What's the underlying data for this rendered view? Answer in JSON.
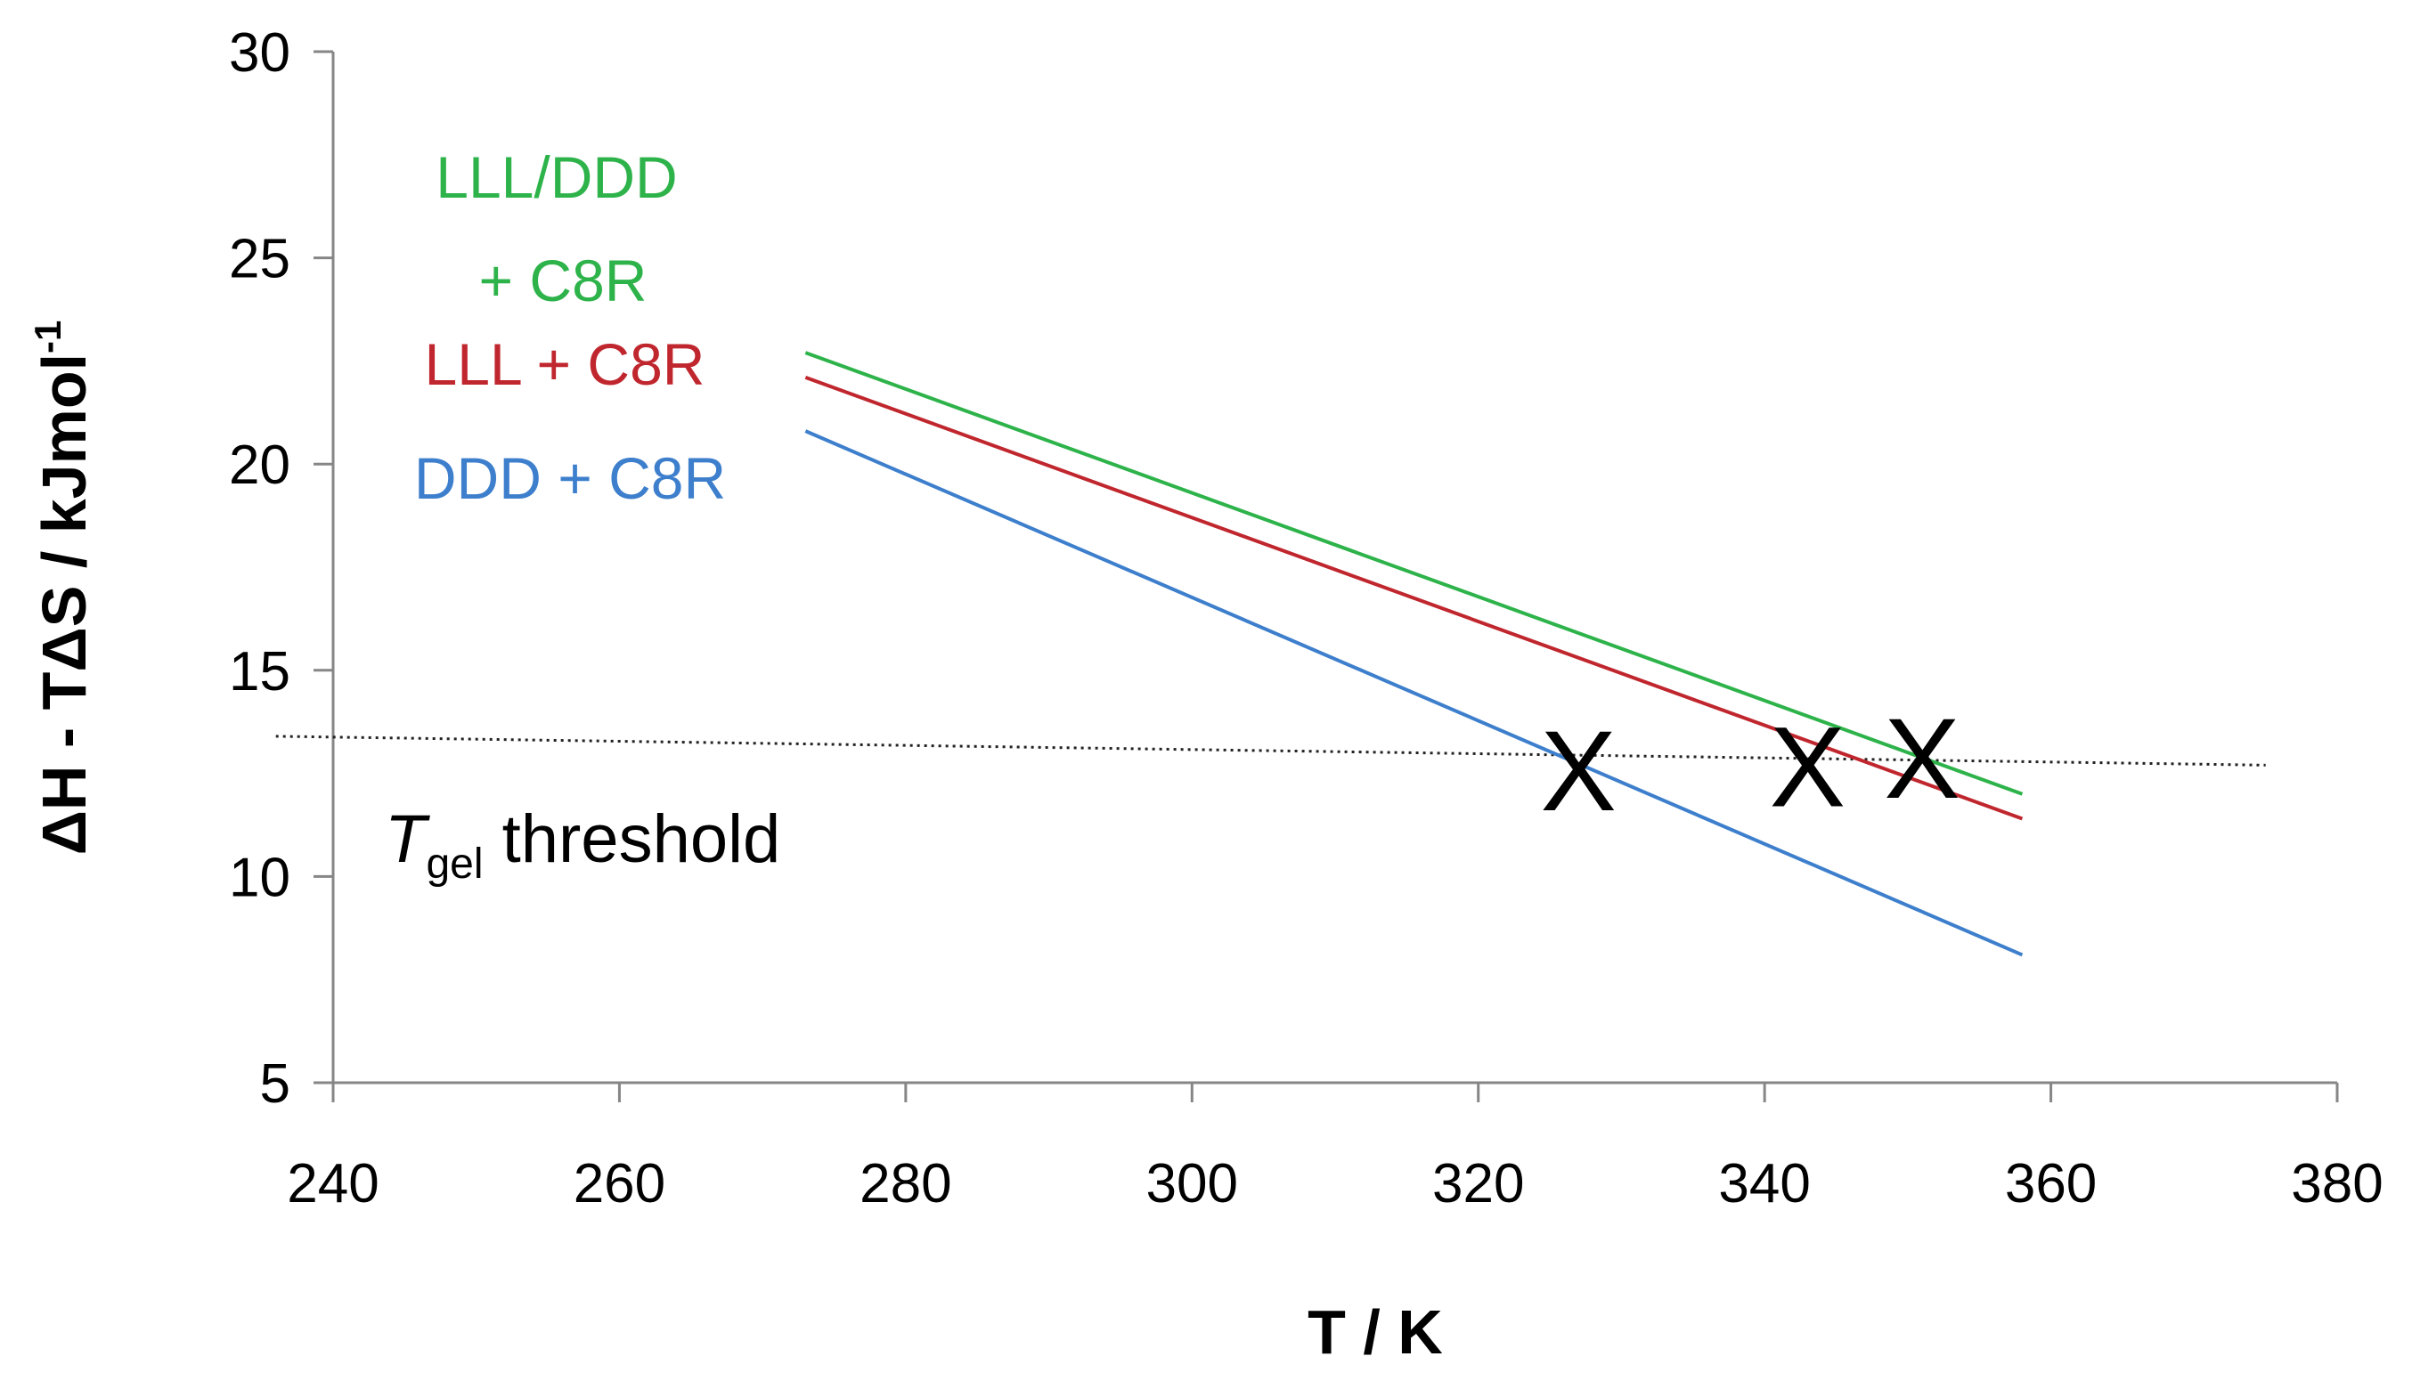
{
  "chart_data": {
    "type": "line",
    "xlabel": "T / K",
    "ylabel": "ΔH - TΔS / kJmol",
    "ylabel_superscript": "-1",
    "xlim": [
      240,
      380
    ],
    "ylim": [
      5,
      30
    ],
    "x_ticks": [
      "240",
      "260",
      "280",
      "300",
      "320",
      "340",
      "360",
      "380"
    ],
    "y_ticks": [
      "5",
      "10",
      "15",
      "20",
      "25",
      "30"
    ],
    "grid": false,
    "series": [
      {
        "name": "LLL/DDD + C8R",
        "label_lines": [
          "LLL/DDD",
          "+ C8R"
        ],
        "color": "#2db34a",
        "x": [
          273,
          358
        ],
        "y": [
          22.7,
          12.0
        ]
      },
      {
        "name": "LLL + C8R",
        "label_lines": [
          "LLL + C8R"
        ],
        "color": "#c0262d",
        "x": [
          273,
          358
        ],
        "y": [
          22.1,
          11.4
        ]
      },
      {
        "name": "DDD + C8R",
        "label_lines": [
          "DDD + C8R"
        ],
        "color": "#3d7fcc",
        "x": [
          273,
          358
        ],
        "y": [
          20.8,
          8.1
        ]
      }
    ],
    "threshold": {
      "label_main": "T",
      "label_sub": "gel",
      "label_rest": " threshold",
      "x": [
        236,
        375
      ],
      "y": [
        13.4,
        12.7
      ]
    },
    "intersections": {
      "marker": "X",
      "points": [
        {
          "x": 327,
          "y": 12.6
        },
        {
          "x": 343,
          "y": 12.7
        },
        {
          "x": 351,
          "y": 12.9
        }
      ]
    }
  }
}
